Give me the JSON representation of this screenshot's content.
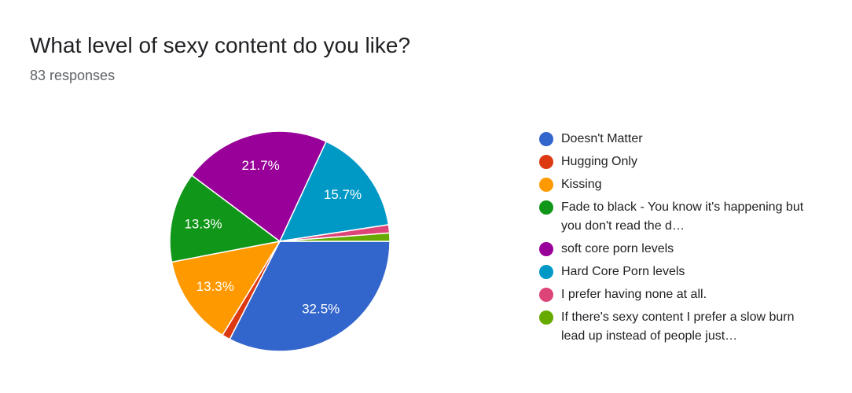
{
  "header": {
    "title": "What level of sexy content do you like?",
    "responses": "83 responses"
  },
  "chart_data": {
    "type": "pie",
    "title": "What level of sexy content do you like?",
    "subtitle": "83 responses",
    "legend_position": "right",
    "start_angle": 0,
    "direction": "clockwise",
    "slices": [
      {
        "name": "Doesn't Matter",
        "value": 27,
        "percent": 32.5,
        "label": "32.5%",
        "color": "#3366cc"
      },
      {
        "name": "Hugging Only",
        "value": 1,
        "percent": 1.2,
        "label": "",
        "color": "#dc3912"
      },
      {
        "name": "Kissing",
        "value": 11,
        "percent": 13.3,
        "label": "13.3%",
        "color": "#ff9900"
      },
      {
        "name": "Fade to black - You know it's happening but you don't read the d…",
        "value": 11,
        "percent": 13.3,
        "label": "13.3%",
        "color": "#109618"
      },
      {
        "name": "soft core porn levels",
        "value": 18,
        "percent": 21.7,
        "label": "21.7%",
        "color": "#990099"
      },
      {
        "name": "Hard Core Porn levels",
        "value": 13,
        "percent": 15.7,
        "label": "15.7%",
        "color": "#0099c6"
      },
      {
        "name": "I prefer having none at all.",
        "value": 1,
        "percent": 1.2,
        "label": "",
        "color": "#dd4477"
      },
      {
        "name": "If there's sexy content I prefer a slow burn lead up instead of people just…",
        "value": 1,
        "percent": 1.2,
        "label": "",
        "color": "#66aa00"
      }
    ]
  }
}
